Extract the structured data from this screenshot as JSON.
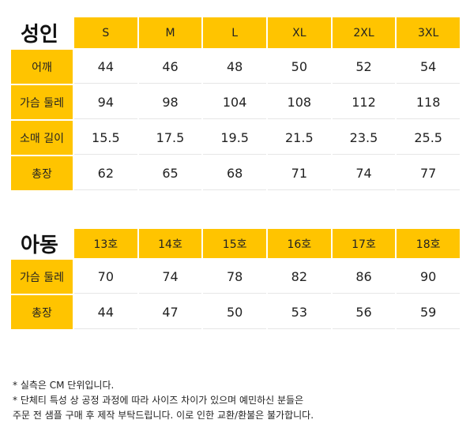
{
  "adult": {
    "title": "성인",
    "sizes": [
      "S",
      "M",
      "L",
      "XL",
      "2XL",
      "3XL"
    ],
    "rows": [
      {
        "label": "어깨",
        "values": [
          "44",
          "46",
          "48",
          "50",
          "52",
          "54"
        ]
      },
      {
        "label": "가슴 둘레",
        "values": [
          "94",
          "98",
          "104",
          "108",
          "112",
          "118"
        ]
      },
      {
        "label": "소매 길이",
        "values": [
          "15.5",
          "17.5",
          "19.5",
          "21.5",
          "23.5",
          "25.5"
        ]
      },
      {
        "label": "총장",
        "values": [
          "62",
          "65",
          "68",
          "71",
          "74",
          "77"
        ]
      }
    ]
  },
  "kids": {
    "title": "아동",
    "sizes": [
      "13호",
      "14호",
      "15호",
      "16호",
      "17호",
      "18호"
    ],
    "rows": [
      {
        "label": "가슴 둘레",
        "values": [
          "70",
          "74",
          "78",
          "82",
          "86",
          "90"
        ]
      },
      {
        "label": "총장",
        "values": [
          "44",
          "47",
          "50",
          "53",
          "56",
          "59"
        ]
      }
    ]
  },
  "notes": [
    "* 실측은 CM 단위입니다.",
    "* 단체티 특성 상 공정 과정에 따라 사이즈 차이가 있으며 예민하신 분들은",
    "주문 전 샘플 구매 후 제작 부탁드립니다. 이로 인한 교환/환불은 불가합니다."
  ],
  "colors": {
    "header_bg": "#ffc400",
    "cell_bg": "#ffffff"
  }
}
